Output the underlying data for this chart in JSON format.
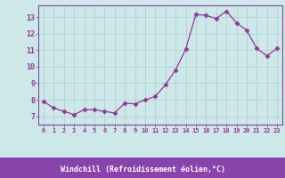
{
  "x": [
    0,
    1,
    2,
    3,
    4,
    5,
    6,
    7,
    8,
    9,
    10,
    11,
    12,
    13,
    14,
    15,
    16,
    17,
    18,
    19,
    20,
    21,
    22,
    23
  ],
  "y": [
    7.9,
    7.5,
    7.3,
    7.1,
    7.4,
    7.4,
    7.3,
    7.2,
    7.8,
    7.75,
    8.0,
    8.2,
    8.9,
    9.8,
    11.05,
    13.15,
    13.1,
    12.9,
    13.35,
    12.65,
    12.2,
    11.1,
    10.65,
    11.1
  ],
  "line_color": "#993399",
  "marker": "D",
  "marker_size": 2.5,
  "bg_color": "#cce8e8",
  "plot_bg_color": "#cce8e8",
  "grid_color": "#aacccc",
  "spine_color": "#8844aa",
  "xlabel": "Windchill (Refroidissement éolien,°C)",
  "xlabel_color": "#993399",
  "tick_color": "#993399",
  "label_bottom_bg": "#8844aa",
  "ylim": [
    6.5,
    13.7
  ],
  "xlim": [
    -0.5,
    23.5
  ],
  "yticks": [
    7,
    8,
    9,
    10,
    11,
    12,
    13
  ],
  "xticks": [
    0,
    1,
    2,
    3,
    4,
    5,
    6,
    7,
    8,
    9,
    10,
    11,
    12,
    13,
    14,
    15,
    16,
    17,
    18,
    19,
    20,
    21,
    22,
    23
  ]
}
